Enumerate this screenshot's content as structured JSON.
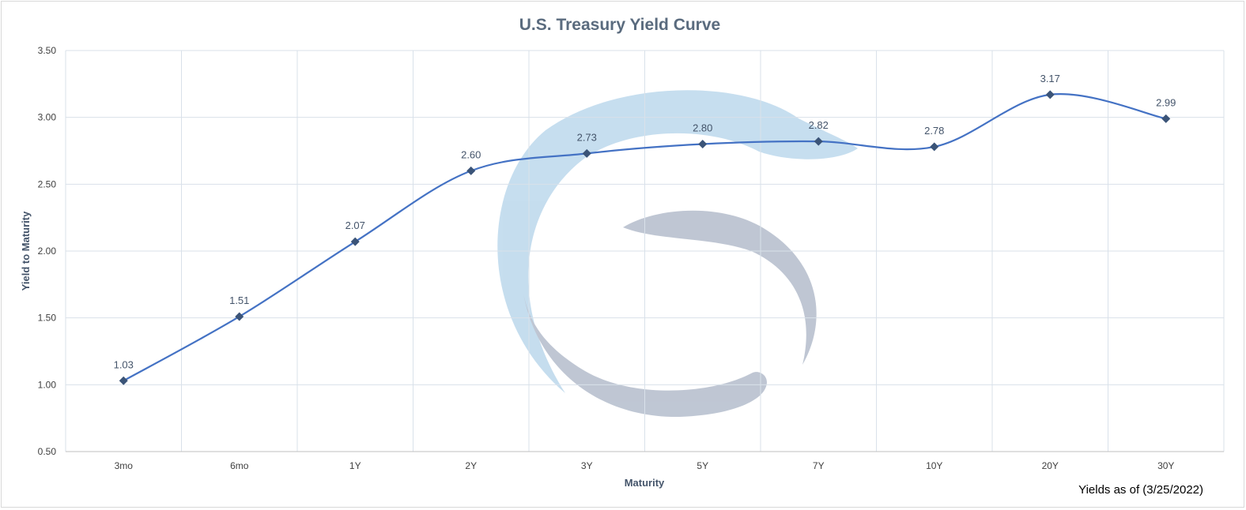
{
  "chart_data": {
    "type": "line",
    "title": "U.S. Treasury Yield Curve",
    "xlabel": "Maturity",
    "ylabel": "Yield to Maturity",
    "categories": [
      "3mo",
      "6mo",
      "1Y",
      "2Y",
      "3Y",
      "5Y",
      "7Y",
      "10Y",
      "20Y",
      "30Y"
    ],
    "values": [
      1.03,
      1.51,
      2.07,
      2.6,
      2.73,
      2.8,
      2.82,
      2.78,
      3.17,
      2.99
    ],
    "value_labels": [
      "1.03",
      "1.51",
      "2.07",
      "2.60",
      "2.73",
      "2.80",
      "2.82",
      "2.78",
      "3.17",
      "2.99"
    ],
    "ylim": [
      0.5,
      3.5
    ],
    "yticks": [
      "0.50",
      "1.00",
      "1.50",
      "2.00",
      "2.50",
      "3.00",
      "3.50"
    ],
    "grid": true,
    "smooth": true,
    "marker": "diamond",
    "line_color": "#4472c4",
    "marker_color": "#3b5478",
    "note": "Yields as of (3/25/2022)"
  },
  "colors": {
    "grid": "#d9e1ea",
    "watermark_light": "#bcd8ec",
    "watermark_dark": "#b4bdcc"
  }
}
